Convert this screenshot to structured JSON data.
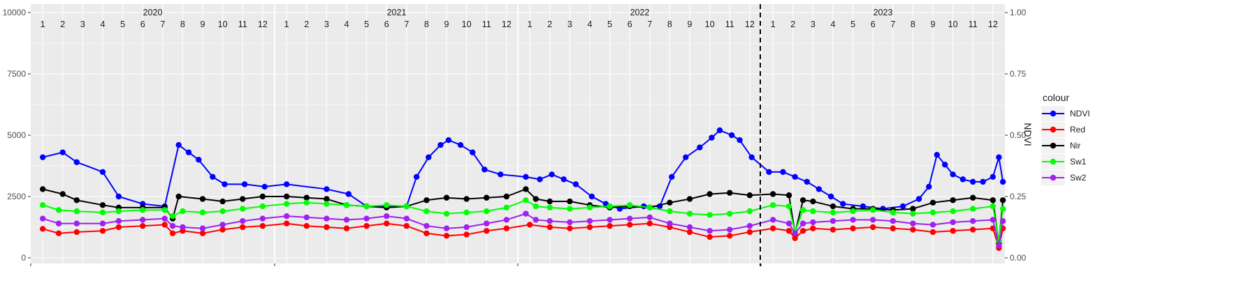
{
  "chart_data": {
    "type": "line",
    "title": "",
    "xlabel": "",
    "ylabel": "",
    "y2label": "NDVI",
    "ylim": [
      0,
      10000
    ],
    "y2lim": [
      0,
      1
    ],
    "yticks": [
      "0",
      "2500",
      "5000",
      "7500",
      "10000"
    ],
    "y2ticks": [
      "0.00",
      "0.25",
      "0.50",
      "0.75",
      "1.00"
    ],
    "years": [
      "2020",
      "2021",
      "2022",
      "2023"
    ],
    "month_labels": [
      "1",
      "2",
      "3",
      "4",
      "5",
      "6",
      "7",
      "8",
      "9",
      "10",
      "11",
      "12"
    ],
    "vline": {
      "year_index": 3,
      "month": 1,
      "style": "dashed"
    },
    "grid": true,
    "legend": {
      "title": "colour",
      "position": "right"
    },
    "series": [
      {
        "name": "NDVI",
        "color": "#0000ff",
        "axis": "secondary",
        "points": [
          [
            0.5,
            0.41
          ],
          [
            1.5,
            0.43
          ],
          [
            2.2,
            0.39
          ],
          [
            3.5,
            0.35
          ],
          [
            4.3,
            0.25
          ],
          [
            5.5,
            0.22
          ],
          [
            6.6,
            0.21
          ],
          [
            7.3,
            0.46
          ],
          [
            7.8,
            0.43
          ],
          [
            8.3,
            0.4
          ],
          [
            9.0,
            0.33
          ],
          [
            9.6,
            0.3
          ],
          [
            10.6,
            0.3
          ],
          [
            11.6,
            0.29
          ],
          [
            12.5,
            0.3
          ],
          [
            14.5,
            0.28
          ],
          [
            15.6,
            0.26
          ],
          [
            16.5,
            0.21
          ],
          [
            18.5,
            0.21
          ],
          [
            19.0,
            0.33
          ],
          [
            19.6,
            0.41
          ],
          [
            20.2,
            0.46
          ],
          [
            20.6,
            0.48
          ],
          [
            21.2,
            0.46
          ],
          [
            21.8,
            0.43
          ],
          [
            22.4,
            0.36
          ],
          [
            23.2,
            0.34
          ],
          [
            24.3,
            0.33
          ],
          [
            25.0,
            0.32
          ],
          [
            25.6,
            0.34
          ],
          [
            26.2,
            0.32
          ],
          [
            26.8,
            0.3
          ],
          [
            27.6,
            0.25
          ],
          [
            28.3,
            0.22
          ],
          [
            29.0,
            0.2
          ],
          [
            30.2,
            0.21
          ],
          [
            31.0,
            0.21
          ],
          [
            31.6,
            0.33
          ],
          [
            32.3,
            0.41
          ],
          [
            33.0,
            0.45
          ],
          [
            33.6,
            0.49
          ],
          [
            34.0,
            0.52
          ],
          [
            34.6,
            0.5
          ],
          [
            35.0,
            0.48
          ],
          [
            35.6,
            0.41
          ],
          [
            36.3,
            0.35
          ],
          [
            37.0,
            0.35
          ],
          [
            37.6,
            0.33
          ],
          [
            38.2,
            0.31
          ],
          [
            38.8,
            0.28
          ],
          [
            39.4,
            0.25
          ],
          [
            40.0,
            0.22
          ],
          [
            41.0,
            0.21
          ],
          [
            42.0,
            0.2
          ],
          [
            43.0,
            0.21
          ],
          [
            43.8,
            0.24
          ],
          [
            44.3,
            0.29
          ],
          [
            44.7,
            0.42
          ],
          [
            45.1,
            0.38
          ],
          [
            45.5,
            0.34
          ],
          [
            46.0,
            0.32
          ],
          [
            46.5,
            0.31
          ],
          [
            47.0,
            0.31
          ],
          [
            47.5,
            0.33
          ],
          [
            47.8,
            0.41
          ],
          [
            48.0,
            0.31
          ]
        ]
      },
      {
        "name": "Red",
        "color": "#ff0000",
        "axis": "primary",
        "points": [
          [
            0.5,
            1180
          ],
          [
            1.3,
            1000
          ],
          [
            2.2,
            1050
          ],
          [
            3.5,
            1100
          ],
          [
            4.3,
            1250
          ],
          [
            5.5,
            1300
          ],
          [
            6.6,
            1350
          ],
          [
            7.0,
            1000
          ],
          [
            7.5,
            1100
          ],
          [
            8.5,
            1000
          ],
          [
            9.5,
            1150
          ],
          [
            10.5,
            1250
          ],
          [
            11.5,
            1300
          ],
          [
            12.5,
            1400
          ],
          [
            13.5,
            1300
          ],
          [
            14.5,
            1250
          ],
          [
            15.5,
            1200
          ],
          [
            16.5,
            1300
          ],
          [
            17.5,
            1400
          ],
          [
            18.5,
            1300
          ],
          [
            19.5,
            1000
          ],
          [
            20.5,
            900
          ],
          [
            21.5,
            950
          ],
          [
            22.5,
            1100
          ],
          [
            23.5,
            1200
          ],
          [
            24.5,
            1350
          ],
          [
            25.5,
            1250
          ],
          [
            26.5,
            1200
          ],
          [
            27.5,
            1250
          ],
          [
            28.5,
            1300
          ],
          [
            29.5,
            1350
          ],
          [
            30.5,
            1400
          ],
          [
            31.5,
            1250
          ],
          [
            32.5,
            1050
          ],
          [
            33.5,
            850
          ],
          [
            34.5,
            900
          ],
          [
            35.5,
            1050
          ],
          [
            36.5,
            1200
          ],
          [
            37.3,
            1100
          ],
          [
            37.6,
            800
          ],
          [
            38.0,
            1100
          ],
          [
            38.5,
            1200
          ],
          [
            39.5,
            1150
          ],
          [
            40.5,
            1200
          ],
          [
            41.5,
            1250
          ],
          [
            42.5,
            1200
          ],
          [
            43.5,
            1150
          ],
          [
            44.5,
            1050
          ],
          [
            45.5,
            1100
          ],
          [
            46.5,
            1150
          ],
          [
            47.5,
            1200
          ],
          [
            47.8,
            400
          ],
          [
            48.0,
            1200
          ]
        ]
      },
      {
        "name": "Nir",
        "color": "#000000",
        "axis": "primary",
        "points": [
          [
            0.5,
            2800
          ],
          [
            1.5,
            2600
          ],
          [
            2.2,
            2350
          ],
          [
            3.5,
            2150
          ],
          [
            4.3,
            2050
          ],
          [
            5.5,
            2050
          ],
          [
            6.6,
            2050
          ],
          [
            7.0,
            1600
          ],
          [
            7.3,
            2500
          ],
          [
            8.5,
            2400
          ],
          [
            9.5,
            2300
          ],
          [
            10.5,
            2400
          ],
          [
            11.5,
            2500
          ],
          [
            12.5,
            2500
          ],
          [
            13.5,
            2450
          ],
          [
            14.5,
            2400
          ],
          [
            15.5,
            2150
          ],
          [
            16.5,
            2100
          ],
          [
            17.5,
            2050
          ],
          [
            18.5,
            2100
          ],
          [
            19.5,
            2350
          ],
          [
            20.5,
            2450
          ],
          [
            21.5,
            2400
          ],
          [
            22.5,
            2450
          ],
          [
            23.5,
            2500
          ],
          [
            24.3,
            2800
          ],
          [
            24.8,
            2400
          ],
          [
            25.5,
            2300
          ],
          [
            26.5,
            2300
          ],
          [
            27.5,
            2150
          ],
          [
            28.5,
            2050
          ],
          [
            29.5,
            2100
          ],
          [
            30.5,
            2050
          ],
          [
            31.5,
            2250
          ],
          [
            32.5,
            2400
          ],
          [
            33.5,
            2600
          ],
          [
            34.5,
            2650
          ],
          [
            35.5,
            2550
          ],
          [
            36.5,
            2600
          ],
          [
            37.3,
            2550
          ],
          [
            37.6,
            1000
          ],
          [
            38.0,
            2350
          ],
          [
            38.5,
            2300
          ],
          [
            39.5,
            2100
          ],
          [
            40.5,
            2000
          ],
          [
            41.5,
            2000
          ],
          [
            42.5,
            1950
          ],
          [
            43.5,
            2000
          ],
          [
            44.5,
            2250
          ],
          [
            45.5,
            2350
          ],
          [
            46.5,
            2450
          ],
          [
            47.5,
            2350
          ],
          [
            47.8,
            600
          ],
          [
            48.0,
            2350
          ]
        ]
      },
      {
        "name": "Sw1",
        "color": "#00ff00",
        "axis": "primary",
        "points": [
          [
            0.5,
            2150
          ],
          [
            1.3,
            1950
          ],
          [
            2.2,
            1900
          ],
          [
            3.5,
            1850
          ],
          [
            4.3,
            1900
          ],
          [
            5.5,
            1950
          ],
          [
            6.6,
            1950
          ],
          [
            7.0,
            1700
          ],
          [
            7.5,
            1900
          ],
          [
            8.5,
            1850
          ],
          [
            9.5,
            1900
          ],
          [
            10.5,
            2000
          ],
          [
            11.5,
            2100
          ],
          [
            12.5,
            2200
          ],
          [
            13.5,
            2250
          ],
          [
            14.5,
            2200
          ],
          [
            15.5,
            2150
          ],
          [
            16.5,
            2100
          ],
          [
            17.5,
            2150
          ],
          [
            18.5,
            2100
          ],
          [
            19.5,
            1900
          ],
          [
            20.5,
            1800
          ],
          [
            21.5,
            1850
          ],
          [
            22.5,
            1900
          ],
          [
            23.5,
            2050
          ],
          [
            24.3,
            2350
          ],
          [
            24.8,
            2100
          ],
          [
            25.5,
            2050
          ],
          [
            26.5,
            2000
          ],
          [
            27.5,
            2050
          ],
          [
            28.5,
            2100
          ],
          [
            29.5,
            2150
          ],
          [
            30.5,
            2050
          ],
          [
            31.5,
            1900
          ],
          [
            32.5,
            1800
          ],
          [
            33.5,
            1750
          ],
          [
            34.5,
            1800
          ],
          [
            35.5,
            1900
          ],
          [
            36.5,
            2150
          ],
          [
            37.3,
            2100
          ],
          [
            37.6,
            1050
          ],
          [
            38.0,
            1950
          ],
          [
            38.5,
            1900
          ],
          [
            39.5,
            1850
          ],
          [
            40.5,
            1900
          ],
          [
            41.5,
            1950
          ],
          [
            42.5,
            1850
          ],
          [
            43.5,
            1800
          ],
          [
            44.5,
            1850
          ],
          [
            45.5,
            1900
          ],
          [
            46.5,
            2000
          ],
          [
            47.5,
            2100
          ],
          [
            47.8,
            700
          ],
          [
            48.0,
            2000
          ]
        ]
      },
      {
        "name": "Sw2",
        "color": "#a020f0",
        "axis": "primary",
        "points": [
          [
            0.5,
            1600
          ],
          [
            1.3,
            1400
          ],
          [
            2.2,
            1400
          ],
          [
            3.5,
            1400
          ],
          [
            4.3,
            1500
          ],
          [
            5.5,
            1550
          ],
          [
            6.6,
            1600
          ],
          [
            7.0,
            1300
          ],
          [
            7.5,
            1250
          ],
          [
            8.5,
            1200
          ],
          [
            9.5,
            1350
          ],
          [
            10.5,
            1500
          ],
          [
            11.5,
            1600
          ],
          [
            12.5,
            1700
          ],
          [
            13.5,
            1650
          ],
          [
            14.5,
            1600
          ],
          [
            15.5,
            1550
          ],
          [
            16.5,
            1600
          ],
          [
            17.5,
            1700
          ],
          [
            18.5,
            1600
          ],
          [
            19.5,
            1300
          ],
          [
            20.5,
            1200
          ],
          [
            21.5,
            1250
          ],
          [
            22.5,
            1400
          ],
          [
            23.5,
            1550
          ],
          [
            24.3,
            1800
          ],
          [
            24.8,
            1550
          ],
          [
            25.5,
            1500
          ],
          [
            26.5,
            1450
          ],
          [
            27.5,
            1500
          ],
          [
            28.5,
            1550
          ],
          [
            29.5,
            1600
          ],
          [
            30.5,
            1650
          ],
          [
            31.5,
            1400
          ],
          [
            32.5,
            1250
          ],
          [
            33.5,
            1100
          ],
          [
            34.5,
            1150
          ],
          [
            35.5,
            1300
          ],
          [
            36.5,
            1550
          ],
          [
            37.3,
            1400
          ],
          [
            37.6,
            1000
          ],
          [
            38.0,
            1400
          ],
          [
            38.5,
            1450
          ],
          [
            39.5,
            1500
          ],
          [
            40.5,
            1550
          ],
          [
            41.5,
            1550
          ],
          [
            42.5,
            1500
          ],
          [
            43.5,
            1400
          ],
          [
            44.5,
            1350
          ],
          [
            45.5,
            1450
          ],
          [
            46.5,
            1500
          ],
          [
            47.5,
            1550
          ],
          [
            47.8,
            500
          ],
          [
            48.0,
            1500
          ]
        ]
      }
    ]
  }
}
